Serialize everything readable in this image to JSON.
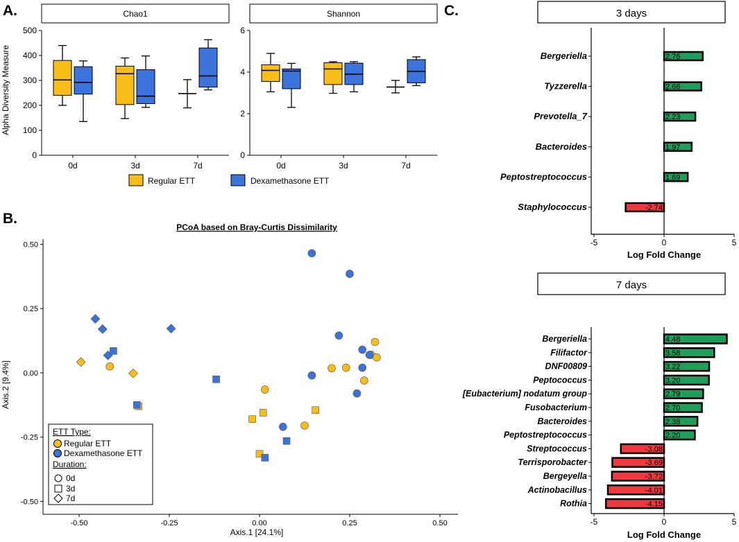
{
  "panel_labels": {
    "a": "A.",
    "b": "B.",
    "c": "C."
  },
  "colors": {
    "regular": "#f9bd1a",
    "dexa": "#3b73db",
    "positive": "#1e9e5a",
    "negative": "#ee3a3f"
  },
  "chart_data": [
    {
      "id": "alpha-diversity",
      "type": "boxplot",
      "ylabel": "Alpha Diversity Measure",
      "legend": [
        "Regular ETT",
        "Dexamethasone ETT"
      ],
      "categories": [
        "0d",
        "3d",
        "7d"
      ],
      "facets": [
        {
          "title": "Chao1",
          "ylim": [
            0,
            500
          ],
          "yticks": [
            "0",
            "100",
            "200",
            "300",
            "400",
            "500"
          ],
          "boxes": [
            {
              "group": "Regular ETT",
              "category": "0d",
              "min": 200,
              "q1": 240,
              "median": 302,
              "q3": 380,
              "max": 440
            },
            {
              "group": "Dexamethasone ETT",
              "category": "0d",
              "min": 135,
              "q1": 245,
              "median": 292,
              "q3": 355,
              "max": 378
            },
            {
              "group": "Regular ETT",
              "category": "3d",
              "min": 147,
              "q1": 203,
              "median": 327,
              "q3": 357,
              "max": 390
            },
            {
              "group": "Dexamethasone ETT",
              "category": "3d",
              "min": 192,
              "q1": 207,
              "median": 237,
              "q3": 343,
              "max": 398
            },
            {
              "group": "Regular ETT",
              "category": "7d",
              "min": 190,
              "q1": 247,
              "median": 247,
              "q3": 247,
              "max": 303
            },
            {
              "group": "Dexamethasone ETT",
              "category": "7d",
              "min": 262,
              "q1": 273,
              "median": 318,
              "q3": 430,
              "max": 463
            }
          ]
        },
        {
          "title": "Shannon",
          "ylim": [
            0,
            6
          ],
          "yticks": [
            "0",
            "2",
            "4",
            "6"
          ],
          "boxes": [
            {
              "group": "Regular ETT",
              "category": "0d",
              "min": 3.05,
              "q1": 3.55,
              "median": 4.08,
              "q3": 4.35,
              "max": 4.9
            },
            {
              "group": "Dexamethasone ETT",
              "category": "0d",
              "min": 2.3,
              "q1": 3.2,
              "median": 4.05,
              "q3": 4.15,
              "max": 4.42
            },
            {
              "group": "Regular ETT",
              "category": "3d",
              "min": 2.98,
              "q1": 3.4,
              "median": 4.15,
              "q3": 4.45,
              "max": 4.5
            },
            {
              "group": "Dexamethasone ETT",
              "category": "3d",
              "min": 3.05,
              "q1": 3.4,
              "median": 3.9,
              "q3": 4.43,
              "max": 4.5
            },
            {
              "group": "Regular ETT",
              "category": "7d",
              "min": 3.0,
              "q1": 3.28,
              "median": 3.28,
              "q3": 3.28,
              "max": 3.6
            },
            {
              "group": "Dexamethasone ETT",
              "category": "7d",
              "min": 3.35,
              "q1": 3.48,
              "median": 4.03,
              "q3": 4.6,
              "max": 4.73
            }
          ]
        }
      ]
    },
    {
      "id": "pcoa",
      "type": "scatter",
      "title": "PCoA based on Bray-Curtis Dissimilarity",
      "xlabel": "Axis.1   [24.1%]",
      "ylabel": "Axis.2   [9.4%]",
      "xlim": [
        -0.6,
        0.55
      ],
      "ylim": [
        -0.55,
        0.52
      ],
      "xticks": [
        "-0.50",
        "-0.25",
        "0.00",
        "0.25",
        "0.50"
      ],
      "yticks": [
        "-0.50",
        "-0.25",
        "0.00",
        "0.25",
        "0.50"
      ],
      "legend": {
        "title_type": "ETT Type:",
        "regular": "Regular ETT",
        "dexa": "Dexamethasone ETT",
        "title_duration": "Duration:",
        "d0": "0d",
        "d3": "3d",
        "d7": "7d"
      },
      "points": [
        {
          "x": -0.415,
          "y": 0.025,
          "group": "regular",
          "time": "0d"
        },
        {
          "x": 0.015,
          "y": -0.065,
          "group": "regular",
          "time": "0d"
        },
        {
          "x": 0.125,
          "y": -0.205,
          "group": "regular",
          "time": "0d"
        },
        {
          "x": 0.2,
          "y": 0.018,
          "group": "regular",
          "time": "0d"
        },
        {
          "x": 0.24,
          "y": 0.02,
          "group": "regular",
          "time": "0d"
        },
        {
          "x": 0.29,
          "y": -0.03,
          "group": "regular",
          "time": "0d"
        },
        {
          "x": 0.31,
          "y": 0.07,
          "group": "regular",
          "time": "0d"
        },
        {
          "x": 0.32,
          "y": 0.12,
          "group": "regular",
          "time": "0d"
        },
        {
          "x": 0.325,
          "y": 0.06,
          "group": "regular",
          "time": "0d"
        },
        {
          "x": -0.335,
          "y": -0.13,
          "group": "regular",
          "time": "3d"
        },
        {
          "x": -0.02,
          "y": -0.18,
          "group": "regular",
          "time": "3d"
        },
        {
          "x": 0.01,
          "y": -0.155,
          "group": "regular",
          "time": "3d"
        },
        {
          "x": 0.0,
          "y": -0.315,
          "group": "regular",
          "time": "3d"
        },
        {
          "x": 0.155,
          "y": -0.145,
          "group": "regular",
          "time": "3d"
        },
        {
          "x": -0.495,
          "y": 0.042,
          "group": "regular",
          "time": "7d"
        },
        {
          "x": -0.35,
          "y": -0.002,
          "group": "regular",
          "time": "7d"
        },
        {
          "x": 0.145,
          "y": 0.465,
          "group": "dexa",
          "time": "0d"
        },
        {
          "x": 0.25,
          "y": 0.385,
          "group": "dexa",
          "time": "0d"
        },
        {
          "x": 0.22,
          "y": 0.145,
          "group": "dexa",
          "time": "0d"
        },
        {
          "x": 0.285,
          "y": 0.09,
          "group": "dexa",
          "time": "0d"
        },
        {
          "x": 0.305,
          "y": 0.07,
          "group": "dexa",
          "time": "0d"
        },
        {
          "x": 0.285,
          "y": 0.02,
          "group": "dexa",
          "time": "0d"
        },
        {
          "x": 0.145,
          "y": -0.01,
          "group": "dexa",
          "time": "0d"
        },
        {
          "x": 0.27,
          "y": -0.08,
          "group": "dexa",
          "time": "0d"
        },
        {
          "x": 0.065,
          "y": -0.21,
          "group": "dexa",
          "time": "0d"
        },
        {
          "x": -0.405,
          "y": 0.085,
          "group": "dexa",
          "time": "3d"
        },
        {
          "x": -0.34,
          "y": -0.125,
          "group": "dexa",
          "time": "3d"
        },
        {
          "x": -0.12,
          "y": -0.025,
          "group": "dexa",
          "time": "3d"
        },
        {
          "x": 0.075,
          "y": -0.265,
          "group": "dexa",
          "time": "3d"
        },
        {
          "x": 0.015,
          "y": -0.33,
          "group": "dexa",
          "time": "3d"
        },
        {
          "x": -0.455,
          "y": 0.21,
          "group": "dexa",
          "time": "7d"
        },
        {
          "x": -0.435,
          "y": 0.17,
          "group": "dexa",
          "time": "7d"
        },
        {
          "x": -0.245,
          "y": 0.172,
          "group": "dexa",
          "time": "7d"
        },
        {
          "x": -0.42,
          "y": 0.068,
          "group": "dexa",
          "time": "7d"
        }
      ]
    },
    {
      "id": "lfc-3d",
      "type": "bar",
      "orientation": "horizontal",
      "title": "3 days",
      "xlabel": "Log Fold Change",
      "xlim": [
        -5,
        5
      ],
      "xticks": [
        "-5",
        "0",
        "5"
      ],
      "categories": [
        "Bergeriella",
        "Tyzzerella",
        "Prevotella_7",
        "Bacteroides",
        "Peptostreptococcus",
        "Staphylococcus"
      ],
      "values": [
        2.76,
        2.66,
        2.23,
        1.97,
        1.69,
        -2.74
      ],
      "labels": [
        "2.76",
        "2.66",
        "2.23",
        "1.97",
        "1.69",
        "-2.74"
      ]
    },
    {
      "id": "lfc-7d",
      "type": "bar",
      "orientation": "horizontal",
      "title": "7 days",
      "xlabel": "Log Fold Change",
      "xlim": [
        -5,
        5
      ],
      "xticks": [
        "-5",
        "0",
        "5"
      ],
      "categories": [
        "Bergeriella",
        "Filifactor",
        "DNF00809",
        "Peptococcus",
        "[Eubacterium] nodatum group",
        "Fusobacterium",
        "Bacteroides",
        "Peptostreptococcus",
        "Streptococcus",
        "Terrisporobacter",
        "Bergeyella",
        "Actinobacillus",
        "Rothia"
      ],
      "values": [
        4.48,
        3.58,
        3.22,
        3.2,
        2.79,
        2.7,
        2.38,
        2.2,
        -3.08,
        -3.69,
        -3.72,
        -4.01,
        -4.15
      ],
      "labels": [
        "4.48",
        "3.58",
        "3.22",
        "3.20",
        "2.79",
        "2.70",
        "2.38",
        "2.20",
        "-3.08",
        "-3.69",
        "-3.72",
        "-4.01",
        "-4.15"
      ]
    }
  ]
}
